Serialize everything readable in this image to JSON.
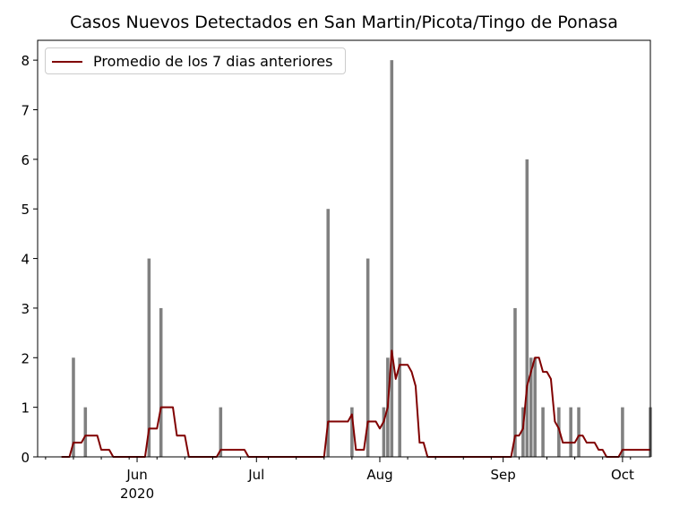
{
  "chart_data": {
    "type": "bar",
    "title": "Casos Nuevos Detectados en San Martin/Picota/Tingo de Ponasa",
    "xlabel": "",
    "ylabel": "",
    "ylim": [
      0,
      8.4
    ],
    "yticks": [
      0,
      1,
      2,
      3,
      4,
      5,
      6,
      7,
      8
    ],
    "x_range_days": [
      0,
      154
    ],
    "x_day0_date": "2020-05-06",
    "x_tick_labels": [
      {
        "day": 25,
        "label": "Jun",
        "sublabel": "2020"
      },
      {
        "day": 55,
        "label": "Jul",
        "sublabel": ""
      },
      {
        "day": 86,
        "label": "Aug",
        "sublabel": ""
      },
      {
        "day": 117,
        "label": "Sep",
        "sublabel": ""
      },
      {
        "day": 147,
        "label": "Oct",
        "sublabel": ""
      }
    ],
    "daily_cases": [
      {
        "day": 9,
        "value": 2
      },
      {
        "day": 12,
        "value": 1
      },
      {
        "day": 28,
        "value": 4
      },
      {
        "day": 31,
        "value": 3
      },
      {
        "day": 46,
        "value": 1
      },
      {
        "day": 73,
        "value": 5
      },
      {
        "day": 79,
        "value": 1
      },
      {
        "day": 83,
        "value": 4
      },
      {
        "day": 87,
        "value": 1
      },
      {
        "day": 88,
        "value": 2
      },
      {
        "day": 89,
        "value": 8
      },
      {
        "day": 91,
        "value": 2
      },
      {
        "day": 120,
        "value": 3
      },
      {
        "day": 122,
        "value": 1
      },
      {
        "day": 123,
        "value": 6
      },
      {
        "day": 124,
        "value": 2
      },
      {
        "day": 125,
        "value": 2
      },
      {
        "day": 127,
        "value": 1
      },
      {
        "day": 131,
        "value": 1
      },
      {
        "day": 134,
        "value": 1
      },
      {
        "day": 136,
        "value": 1
      },
      {
        "day": 147,
        "value": 1
      },
      {
        "day": 154,
        "value": 1
      }
    ],
    "series": [
      {
        "name": "Promedio de los 7 dias anteriores",
        "type": "line",
        "values_from": "7-day trailing average of daily_cases",
        "start_day": 6,
        "end_day": 154
      }
    ],
    "legend": "upper-left",
    "grid": false
  },
  "colors": {
    "bar": "#808080",
    "line": "#800000",
    "axis": "#000000"
  }
}
